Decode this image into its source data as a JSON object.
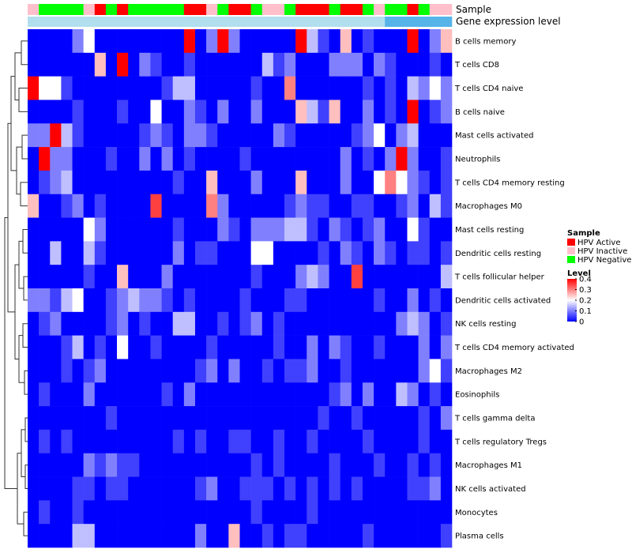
{
  "chart_data": {
    "type": "heatmap",
    "title": "",
    "rows": [
      "B cells memory",
      "T cells CD8",
      "T cells CD4 naive",
      "B cells naive",
      "Mast cells activated",
      "Neutrophils",
      "T cells CD4 memory resting",
      "Macrophages M0",
      "Mast cells resting",
      "Dendritic cells resting",
      "T cells follicular helper",
      "Dendritic cells activated",
      "NK cells resting",
      "T cells CD4 memory activated",
      "Macrophages M2",
      "Eosinophils",
      "T cells gamma delta",
      "T cells regulatory  Tregs",
      "Macrophages M1",
      "NK cells activated",
      "Monocytes",
      "Plasma cells"
    ],
    "annotation_labels": {
      "sample": "Sample",
      "gene_expression": "Gene expression level"
    },
    "sample_annotation": [
      "Inactive",
      "Negative",
      "Negative",
      "Negative",
      "Negative",
      "Inactive",
      "Active",
      "Negative",
      "Active",
      "Negative",
      "Negative",
      "Negative",
      "Negative",
      "Negative",
      "Active",
      "Active",
      "Inactive",
      "Negative",
      "Active",
      "Active",
      "Negative",
      "Inactive",
      "Inactive",
      "Negative",
      "Active",
      "Active",
      "Active",
      "Negative",
      "Active",
      "Active",
      "Negative",
      "Inactive",
      "Negative",
      "Negative",
      "Active",
      "Negative",
      "Inactive",
      "Inactive"
    ],
    "gene_expression_annotation": [
      "low",
      "low",
      "low",
      "low",
      "low",
      "low",
      "low",
      "low",
      "low",
      "low",
      "low",
      "low",
      "low",
      "low",
      "low",
      "low",
      "low",
      "low",
      "low",
      "low",
      "low",
      "low",
      "low",
      "low",
      "low",
      "low",
      "low",
      "low",
      "low",
      "low",
      "low",
      "low",
      "high",
      "high",
      "high",
      "high",
      "high",
      "high"
    ],
    "values": [
      [
        0.0,
        0.0,
        0.0,
        0.0,
        0.1,
        0.2,
        0.0,
        0.0,
        0.0,
        0.0,
        0.0,
        0.0,
        0.0,
        0.0,
        0.4,
        0.0,
        0.1,
        0.4,
        0.1,
        0.0,
        0.0,
        0.0,
        0.0,
        0.0,
        0.4,
        0.15,
        0.05,
        0.0,
        0.25,
        0.0,
        0.05,
        0.0,
        0.0,
        0.0,
        0.4,
        0.0,
        0.1,
        0.25
      ],
      [
        0.0,
        0.0,
        0.0,
        0.0,
        0.0,
        0.0,
        0.25,
        0.0,
        0.4,
        0.0,
        0.1,
        0.05,
        0.0,
        0.0,
        0.05,
        0.0,
        0.0,
        0.0,
        0.0,
        0.0,
        0.0,
        0.15,
        0.05,
        0.1,
        0.0,
        0.0,
        0.0,
        0.1,
        0.1,
        0.1,
        0.0,
        0.1,
        0.05,
        0.0,
        0.0,
        0.0,
        0.05,
        0.0
      ],
      [
        0.4,
        0.2,
        0.2,
        0.05,
        0.0,
        0.0,
        0.0,
        0.0,
        0.0,
        0.0,
        0.0,
        0.0,
        0.05,
        0.15,
        0.15,
        0.0,
        0.0,
        0.0,
        0.0,
        0.0,
        0.05,
        0.0,
        0.0,
        0.3,
        0.0,
        0.0,
        0.0,
        0.0,
        0.0,
        0.0,
        0.05,
        0.0,
        0.05,
        0.0,
        0.15,
        0.1,
        0.2,
        0.1
      ],
      [
        0.0,
        0.0,
        0.0,
        0.0,
        0.05,
        0.0,
        0.0,
        0.0,
        0.05,
        0.0,
        0.0,
        0.2,
        0.0,
        0.0,
        0.1,
        0.05,
        0.0,
        0.1,
        0.0,
        0.0,
        0.1,
        0.0,
        0.0,
        0.0,
        0.25,
        0.15,
        0.05,
        0.25,
        0.0,
        0.0,
        0.1,
        0.0,
        0.05,
        0.0,
        0.4,
        0.0,
        0.05,
        0.1
      ],
      [
        0.1,
        0.1,
        0.4,
        0.15,
        0.05,
        0.0,
        0.0,
        0.0,
        0.0,
        0.0,
        0.05,
        0.1,
        0.05,
        0.0,
        0.1,
        0.1,
        0.05,
        0.0,
        0.0,
        0.0,
        0.0,
        0.0,
        0.1,
        0.05,
        0.0,
        0.0,
        0.0,
        0.0,
        0.0,
        0.05,
        0.1,
        0.2,
        0.0,
        0.1,
        0.15,
        0.0,
        0.0,
        0.0
      ],
      [
        0.0,
        0.4,
        0.1,
        0.1,
        0.0,
        0.0,
        0.0,
        0.05,
        0.0,
        0.0,
        0.1,
        0.0,
        0.1,
        0.0,
        0.05,
        0.0,
        0.0,
        0.0,
        0.0,
        0.05,
        0.0,
        0.0,
        0.0,
        0.0,
        0.0,
        0.0,
        0.0,
        0.0,
        0.1,
        0.0,
        0.05,
        0.0,
        0.1,
        0.4,
        0.1,
        0.0,
        0.0,
        0.05
      ],
      [
        0.0,
        0.05,
        0.1,
        0.15,
        0.0,
        0.0,
        0.0,
        0.0,
        0.0,
        0.0,
        0.0,
        0.0,
        0.0,
        0.05,
        0.0,
        0.0,
        0.25,
        0.0,
        0.0,
        0.0,
        0.1,
        0.0,
        0.0,
        0.0,
        0.25,
        0.0,
        0.0,
        0.0,
        0.1,
        0.0,
        0.0,
        0.2,
        0.3,
        0.2,
        0.1,
        0.05,
        0.0,
        0.05
      ],
      [
        0.25,
        0.0,
        0.0,
        0.05,
        0.1,
        0.0,
        0.05,
        0.0,
        0.0,
        0.0,
        0.0,
        0.35,
        0.0,
        0.0,
        0.0,
        0.0,
        0.3,
        0.1,
        0.0,
        0.0,
        0.0,
        0.0,
        0.0,
        0.05,
        0.1,
        0.05,
        0.05,
        0.0,
        0.0,
        0.05,
        0.05,
        0.0,
        0.0,
        0.05,
        0.1,
        0.0,
        0.15,
        0.05
      ],
      [
        0.0,
        0.0,
        0.0,
        0.0,
        0.0,
        0.2,
        0.1,
        0.0,
        0.0,
        0.0,
        0.0,
        0.0,
        0.0,
        0.05,
        0.0,
        0.0,
        0.0,
        0.1,
        0.05,
        0.0,
        0.1,
        0.1,
        0.1,
        0.15,
        0.15,
        0.05,
        0.0,
        0.1,
        0.05,
        0.0,
        0.05,
        0.1,
        0.0,
        0.0,
        0.2,
        0.05,
        0.0,
        0.0
      ],
      [
        0.0,
        0.0,
        0.15,
        0.0,
        0.0,
        0.15,
        0.05,
        0.0,
        0.0,
        0.0,
        0.0,
        0.0,
        0.0,
        0.1,
        0.0,
        0.05,
        0.05,
        0.0,
        0.0,
        0.0,
        0.2,
        0.2,
        0.0,
        0.0,
        0.0,
        0.0,
        0.05,
        0.0,
        0.1,
        0.05,
        0.0,
        0.1,
        0.05,
        0.0,
        0.05,
        0.05,
        0.0,
        0.05
      ],
      [
        0.0,
        0.0,
        0.0,
        0.0,
        0.0,
        0.05,
        0.0,
        0.0,
        0.25,
        0.0,
        0.0,
        0.0,
        0.1,
        0.0,
        0.0,
        0.0,
        0.0,
        0.0,
        0.0,
        0.0,
        0.05,
        0.0,
        0.0,
        0.0,
        0.1,
        0.15,
        0.1,
        0.0,
        0.0,
        0.35,
        0.0,
        0.0,
        0.0,
        0.0,
        0.0,
        0.0,
        0.0,
        0.15
      ],
      [
        0.1,
        0.1,
        0.05,
        0.15,
        0.2,
        0.0,
        0.0,
        0.05,
        0.1,
        0.15,
        0.1,
        0.1,
        0.05,
        0.0,
        0.05,
        0.0,
        0.0,
        0.0,
        0.0,
        0.05,
        0.0,
        0.0,
        0.0,
        0.05,
        0.05,
        0.0,
        0.0,
        0.0,
        0.0,
        0.0,
        0.0,
        0.05,
        0.0,
        0.0,
        0.1,
        0.0,
        0.05,
        0.0
      ],
      [
        0.0,
        0.05,
        0.1,
        0.0,
        0.0,
        0.0,
        0.0,
        0.05,
        0.1,
        0.0,
        0.05,
        0.0,
        0.0,
        0.15,
        0.15,
        0.0,
        0.0,
        0.05,
        0.0,
        0.05,
        0.1,
        0.0,
        0.05,
        0.0,
        0.0,
        0.0,
        0.0,
        0.0,
        0.0,
        0.0,
        0.0,
        0.0,
        0.0,
        0.1,
        0.15,
        0.1,
        0.0,
        0.05
      ],
      [
        0.0,
        0.0,
        0.0,
        0.05,
        0.15,
        0.0,
        0.05,
        0.0,
        0.2,
        0.0,
        0.0,
        0.05,
        0.0,
        0.0,
        0.0,
        0.0,
        0.05,
        0.0,
        0.0,
        0.0,
        0.0,
        0.0,
        0.05,
        0.0,
        0.0,
        0.1,
        0.0,
        0.1,
        0.05,
        0.0,
        0.0,
        0.05,
        0.0,
        0.0,
        0.0,
        0.1,
        0.0,
        0.1
      ],
      [
        0.0,
        0.0,
        0.0,
        0.05,
        0.0,
        0.05,
        0.1,
        0.0,
        0.0,
        0.0,
        0.0,
        0.0,
        0.0,
        0.0,
        0.0,
        0.05,
        0.1,
        0.0,
        0.1,
        0.0,
        0.0,
        0.05,
        0.0,
        0.05,
        0.05,
        0.1,
        0.0,
        0.0,
        0.05,
        0.0,
        0.0,
        0.0,
        0.0,
        0.0,
        0.0,
        0.1,
        0.2,
        0.05
      ],
      [
        0.0,
        0.05,
        0.0,
        0.0,
        0.0,
        0.1,
        0.0,
        0.0,
        0.0,
        0.0,
        0.0,
        0.0,
        0.05,
        0.0,
        0.1,
        0.0,
        0.0,
        0.0,
        0.0,
        0.0,
        0.0,
        0.0,
        0.0,
        0.0,
        0.0,
        0.0,
        0.0,
        0.05,
        0.1,
        0.0,
        0.1,
        0.0,
        0.0,
        0.15,
        0.1,
        0.0,
        0.05,
        0.0
      ],
      [
        0.0,
        0.0,
        0.0,
        0.0,
        0.0,
        0.0,
        0.0,
        0.05,
        0.0,
        0.0,
        0.0,
        0.0,
        0.0,
        0.0,
        0.0,
        0.0,
        0.0,
        0.0,
        0.0,
        0.0,
        0.0,
        0.0,
        0.0,
        0.0,
        0.0,
        0.0,
        0.05,
        0.0,
        0.0,
        0.05,
        0.0,
        0.0,
        0.0,
        0.0,
        0.0,
        0.05,
        0.0,
        0.1
      ],
      [
        0.0,
        0.05,
        0.0,
        0.05,
        0.0,
        0.0,
        0.0,
        0.0,
        0.0,
        0.0,
        0.0,
        0.0,
        0.0,
        0.05,
        0.0,
        0.05,
        0.0,
        0.0,
        0.05,
        0.05,
        0.0,
        0.0,
        0.05,
        0.0,
        0.0,
        0.05,
        0.0,
        0.0,
        0.0,
        0.0,
        0.05,
        0.0,
        0.0,
        0.0,
        0.0,
        0.05,
        0.0,
        0.0
      ],
      [
        0.0,
        0.0,
        0.0,
        0.0,
        0.0,
        0.1,
        0.05,
        0.1,
        0.05,
        0.05,
        0.0,
        0.0,
        0.0,
        0.0,
        0.0,
        0.0,
        0.0,
        0.0,
        0.0,
        0.0,
        0.05,
        0.0,
        0.05,
        0.0,
        0.0,
        0.0,
        0.0,
        0.05,
        0.0,
        0.0,
        0.0,
        0.05,
        0.0,
        0.0,
        0.05,
        0.0,
        0.05,
        0.0
      ],
      [
        0.0,
        0.0,
        0.0,
        0.0,
        0.05,
        0.05,
        0.0,
        0.05,
        0.05,
        0.0,
        0.0,
        0.0,
        0.0,
        0.0,
        0.0,
        0.05,
        0.1,
        0.0,
        0.0,
        0.05,
        0.05,
        0.05,
        0.0,
        0.05,
        0.0,
        0.05,
        0.0,
        0.05,
        0.0,
        0.05,
        0.0,
        0.0,
        0.0,
        0.0,
        0.05,
        0.05,
        0.1,
        0.0
      ],
      [
        0.0,
        0.05,
        0.0,
        0.0,
        0.05,
        0.0,
        0.0,
        0.0,
        0.0,
        0.0,
        0.0,
        0.0,
        0.0,
        0.0,
        0.0,
        0.0,
        0.0,
        0.0,
        0.0,
        0.0,
        0.05,
        0.0,
        0.0,
        0.0,
        0.0,
        0.05,
        0.0,
        0.0,
        0.0,
        0.0,
        0.0,
        0.0,
        0.0,
        0.0,
        0.0,
        0.0,
        0.0,
        0.0
      ],
      [
        0.0,
        0.0,
        0.0,
        0.0,
        0.15,
        0.15,
        0.0,
        0.0,
        0.0,
        0.0,
        0.0,
        0.0,
        0.0,
        0.0,
        0.0,
        0.1,
        0.0,
        0.0,
        0.25,
        0.0,
        0.0,
        0.05,
        0.0,
        0.05,
        0.05,
        0.0,
        0.0,
        0.0,
        0.0,
        0.0,
        0.05,
        0.0,
        0.0,
        0.0,
        0.0,
        0.0,
        0.0,
        0.05
      ]
    ],
    "color_scale": {
      "min": 0,
      "max": 0.4,
      "ticks": [
        0,
        0.1,
        0.2,
        0.3,
        0.4
      ],
      "tick_labels": [
        "0",
        "0.1",
        "0.2",
        "0.3",
        "0.4"
      ],
      "low_color": "#0000ff",
      "mid_color": "#ffffff",
      "high_color": "#ff0000"
    },
    "legend": {
      "sample_title": "Sample",
      "level_title": "Level",
      "items": [
        {
          "key": "Active",
          "label": "HPV Active",
          "color": "#ff0000"
        },
        {
          "key": "Inactive",
          "label": "HPV Inactive",
          "color": "#ffc0cb"
        },
        {
          "key": "Negative",
          "label": "HPV Negative",
          "color": "#00ff00"
        }
      ]
    },
    "gene_expression_colors": {
      "low": "#b2dfee",
      "high": "#56b4e9"
    }
  }
}
